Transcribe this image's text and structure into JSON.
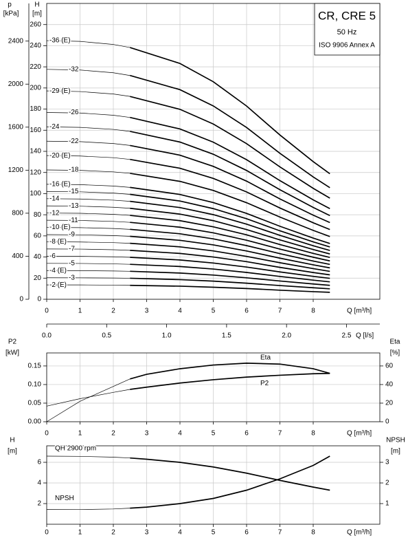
{
  "chart_data": [
    {
      "type": "line",
      "annotations": [
        "CR, CRE 5",
        "50 Hz",
        "ISO 9906 Annex A"
      ],
      "ylabel": "H",
      "yunit": "[m]",
      "y2label": "p",
      "y2unit": "[kPa]",
      "xlabel": "Q [m³/h]",
      "x2label": "Q [l/s]",
      "xlim": [
        0,
        10
      ],
      "xticks": [
        0,
        1,
        2,
        3,
        4,
        5,
        6,
        7,
        8
      ],
      "x2lim": [
        0,
        2.778
      ],
      "x2ticks": [
        {
          "value": 0,
          "label": "0.0"
        },
        0.5,
        {
          "value": 1,
          "label": "1.0"
        },
        1.5,
        {
          "value": 2,
          "label": "2.0"
        },
        2.5
      ],
      "ylim": [
        0,
        280
      ],
      "yticks": [
        0,
        20,
        40,
        60,
        80,
        100,
        120,
        140,
        160,
        180,
        200,
        220,
        240,
        260
      ],
      "y2lim": [
        0,
        2750
      ],
      "y2ticks": [
        0,
        400,
        800,
        1200,
        1600,
        2000,
        2400
      ],
      "grid": true,
      "bold_from": 2.5,
      "color": "#000000",
      "x": [
        0,
        1,
        2,
        2.5,
        4,
        5,
        6,
        7,
        8,
        8.5
      ],
      "series": [
        {
          "name": "-2 (E)",
          "values": [
            13.6,
            13.6,
            13.4,
            13.2,
            12.4,
            11.4,
            10.2,
            8.6,
            7.2,
            6.6
          ]
        },
        {
          "name": "-3",
          "values": [
            20.4,
            20.3,
            20.1,
            19.9,
            18.6,
            17.2,
            15.2,
            13.0,
            10.9,
            9.9
          ]
        },
        {
          "name": "-4 (E)",
          "values": [
            27.2,
            27.1,
            26.8,
            26.5,
            24.8,
            22.9,
            20.3,
            17.3,
            14.5,
            13.2
          ]
        },
        {
          "name": "-5",
          "values": [
            34.0,
            33.9,
            33.5,
            33.1,
            31.0,
            28.6,
            25.4,
            21.6,
            18.1,
            16.5
          ]
        },
        {
          "name": "-6",
          "values": [
            40.8,
            40.7,
            40.2,
            39.7,
            37.2,
            34.3,
            30.5,
            25.9,
            21.7,
            19.8
          ]
        },
        {
          "name": "-7",
          "values": [
            47.6,
            47.5,
            46.9,
            46.3,
            43.4,
            40.0,
            35.6,
            30.2,
            25.3,
            23.1
          ]
        },
        {
          "name": "-8 (E)",
          "values": [
            54.4,
            54.2,
            53.6,
            53.0,
            49.6,
            45.8,
            40.6,
            34.6,
            29.0,
            26.4
          ]
        },
        {
          "name": "-9",
          "values": [
            61.2,
            61.0,
            60.3,
            59.6,
            55.8,
            51.5,
            45.7,
            38.9,
            32.6,
            29.7
          ]
        },
        {
          "name": "-10 (E)",
          "values": [
            68.0,
            67.8,
            67.0,
            66.2,
            62.0,
            57.2,
            50.8,
            43.2,
            36.2,
            33.0
          ]
        },
        {
          "name": "-11",
          "values": [
            74.8,
            74.6,
            73.7,
            72.8,
            68.2,
            62.9,
            55.9,
            47.5,
            39.8,
            36.3
          ]
        },
        {
          "name": "-12",
          "values": [
            81.6,
            81.4,
            80.4,
            79.4,
            74.4,
            68.6,
            61.0,
            51.8,
            43.4,
            39.6
          ]
        },
        {
          "name": "-13",
          "values": [
            88.4,
            88.1,
            87.1,
            86.1,
            80.6,
            74.4,
            66.0,
            56.2,
            47.1,
            42.9
          ]
        },
        {
          "name": "-14",
          "values": [
            95.2,
            94.9,
            93.8,
            92.7,
            86.8,
            80.1,
            71.1,
            60.5,
            50.7,
            46.2
          ]
        },
        {
          "name": "-15",
          "values": [
            102.0,
            101.7,
            100.5,
            99.3,
            93.0,
            85.8,
            76.2,
            64.8,
            54.3,
            49.5
          ]
        },
        {
          "name": "-16 (E)",
          "values": [
            108.8,
            108.5,
            107.2,
            105.9,
            99.2,
            91.5,
            81.3,
            69.1,
            57.9,
            52.8
          ]
        },
        {
          "name": "-18",
          "values": [
            122.4,
            122.0,
            120.6,
            119.2,
            111.6,
            103.0,
            91.4,
            77.8,
            65.2,
            59.4
          ]
        },
        {
          "name": "-20 (E)",
          "values": [
            136.0,
            135.6,
            134.0,
            132.4,
            124.0,
            114.4,
            101.6,
            86.4,
            72.4,
            66.0
          ]
        },
        {
          "name": "-22",
          "values": [
            149.6,
            149.2,
            147.4,
            145.6,
            136.4,
            125.8,
            111.8,
            95.0,
            79.6,
            72.6
          ]
        },
        {
          "name": "-24",
          "values": [
            163.2,
            162.7,
            160.8,
            158.9,
            148.8,
            137.3,
            121.9,
            103.7,
            86.9,
            79.2
          ]
        },
        {
          "name": "-26",
          "values": [
            176.8,
            176.3,
            174.2,
            172.1,
            161.2,
            148.7,
            132.1,
            112.3,
            94.1,
            85.8
          ]
        },
        {
          "name": "-29 (E)",
          "values": [
            197.2,
            196.6,
            194.3,
            192.0,
            179.8,
            165.9,
            147.3,
            125.3,
            105.0,
            95.7
          ]
        },
        {
          "name": "-32",
          "values": [
            217.6,
            217.0,
            214.4,
            211.8,
            198.4,
            183.0,
            162.6,
            138.2,
            115.8,
            105.6
          ]
        },
        {
          "name": "-36 (E)",
          "values": [
            244.8,
            244.1,
            241.2,
            238.3,
            223.2,
            205.9,
            182.9,
            155.5,
            130.3,
            118.8
          ]
        }
      ]
    },
    {
      "type": "line",
      "ylabel": "P2",
      "yunit": "[kW]",
      "y2label": "Eta",
      "y2unit": "[%]",
      "xlabel": "Q [m³/h]",
      "xlim": [
        0,
        10
      ],
      "xticks": [
        0,
        1,
        2,
        3,
        4,
        5,
        6,
        7,
        8
      ],
      "ylim": [
        0,
        0.185
      ],
      "yticks": [
        {
          "value": 0,
          "label": "0.00"
        },
        0.05,
        {
          "value": 0.1,
          "label": "0.10"
        },
        0.15
      ],
      "y2lim": [
        0,
        74
      ],
      "y2ticks": [
        0,
        20,
        40,
        60
      ],
      "grid": true,
      "bold_from": 2.5,
      "color": "#000000",
      "x": [
        0,
        1,
        2,
        2.5,
        3,
        4,
        5,
        6,
        7,
        8,
        8.5
      ],
      "series": [
        {
          "name": "Eta",
          "axis": "y2",
          "values": [
            0,
            22,
            38,
            46,
            51,
            57,
            61,
            63,
            62,
            57,
            52
          ]
        },
        {
          "name": "P2",
          "values": [
            0.042,
            0.062,
            0.079,
            0.087,
            0.093,
            0.104,
            0.113,
            0.12,
            0.125,
            0.129,
            0.13
          ]
        }
      ]
    },
    {
      "type": "line",
      "ylabel": "H",
      "yunit": "[m]",
      "y2label": "NPSH",
      "y2unit": "[m]",
      "xlabel": "Q [m³/h]",
      "xlim": [
        0,
        10
      ],
      "xticks": [
        0,
        1,
        2,
        3,
        4,
        5,
        6,
        7,
        8
      ],
      "ylim": [
        0,
        7.6
      ],
      "yticks": [
        2,
        4,
        6
      ],
      "y2lim": [
        0,
        3.8
      ],
      "y2ticks": [
        1,
        2,
        3
      ],
      "grid": true,
      "bold_from": 2.5,
      "color": "#000000",
      "x": [
        0,
        1,
        2,
        2.5,
        3,
        4,
        5,
        6,
        7,
        8,
        8.5
      ],
      "series": [
        {
          "name": "QH 2900 rpm",
          "values": [
            6.6,
            6.58,
            6.5,
            6.42,
            6.3,
            6.0,
            5.55,
            4.95,
            4.25,
            3.6,
            3.3
          ]
        },
        {
          "name": "NPSH",
          "axis": "y2",
          "values": [
            0.72,
            0.71,
            0.74,
            0.78,
            0.83,
            1.0,
            1.25,
            1.65,
            2.2,
            2.85,
            3.3
          ]
        }
      ]
    }
  ]
}
